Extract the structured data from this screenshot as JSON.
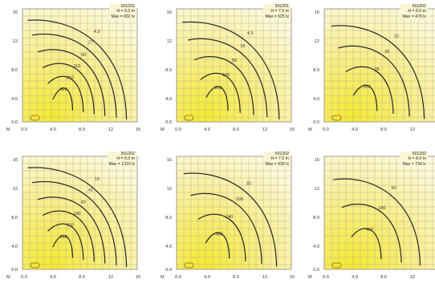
{
  "chart_data": [
    {
      "type": "contour",
      "code": "501201",
      "height": "H = 6.0 m",
      "max": "Max = 832 lx",
      "x_ticks": [
        "M",
        "0.0",
        "4.0",
        "8.0",
        "12",
        "16"
      ],
      "y_ticks": [
        "16",
        "12",
        "8.0",
        "4.0",
        "0.0"
      ],
      "contours": [
        {
          "level": "4.3"
        },
        {
          "level": "27"
        },
        {
          "level": "50"
        },
        {
          "level": "110"
        },
        {
          "level": "210"
        },
        {
          "level": "420"
        }
      ]
    },
    {
      "type": "contour",
      "code": "501201",
      "height": "H = 7.0 m",
      "max": "Max = 625 lx",
      "x_ticks": [
        "M",
        "0.0",
        "4.0",
        "8.0",
        "12",
        "16"
      ],
      "y_ticks": [
        "16",
        "12",
        "8.0",
        "4.0",
        "0.0"
      ],
      "contours": [
        {
          "level": "4.3"
        },
        {
          "level": "15"
        },
        {
          "level": "50"
        },
        {
          "level": "100"
        },
        {
          "level": "210"
        }
      ]
    },
    {
      "type": "contour",
      "code": "501201",
      "height": "H = 8.0 m",
      "max": "Max = 479 lx",
      "x_ticks": [
        "M",
        "0.0",
        "4.0",
        "8.0",
        "12",
        "16"
      ],
      "y_ticks": [
        "16",
        "12",
        "8.0",
        "4.0",
        "0.0"
      ],
      "contours": [
        {
          "level": "13"
        },
        {
          "level": "30"
        },
        {
          "level": "95"
        },
        {
          "level": "390"
        }
      ]
    },
    {
      "type": "contour",
      "code": "501202",
      "height": "H = 6.0 m",
      "max": "Max = 1310 lx",
      "x_ticks": [
        "M",
        "0.0",
        "4.0",
        "8.0",
        "12",
        "16"
      ],
      "y_ticks": [
        "16",
        "12",
        "8.0",
        "4.0",
        "0.0"
      ],
      "contours": [
        {
          "level": "13"
        },
        {
          "level": "41"
        },
        {
          "level": "87"
        },
        {
          "level": "190"
        },
        {
          "level": "370"
        },
        {
          "level": "810"
        }
      ]
    },
    {
      "type": "contour",
      "code": "501202",
      "height": "H = 7.0 m",
      "max": "Max = 939 lx",
      "x_ticks": [
        "M",
        "0.0",
        "4.0",
        "8.0",
        "12",
        "16"
      ],
      "y_ticks": [
        "16",
        "12",
        "8.0",
        "4.0",
        "0.0"
      ],
      "contours": [
        {
          "level": "30"
        },
        {
          "level": "100"
        },
        {
          "level": "240"
        },
        {
          "level": "580"
        }
      ]
    },
    {
      "type": "contour",
      "code": "501202",
      "height": "H = 8.0 m",
      "max": "Max = 734 lx",
      "x_ticks": [
        "M",
        "0.0",
        "4.0",
        "8.0",
        "12",
        "16"
      ],
      "y_ticks": [
        "16",
        "12",
        "8.0",
        "4.0",
        "0.0"
      ],
      "contours": [
        {
          "level": "50"
        },
        {
          "level": "190"
        },
        {
          "level": "410"
        }
      ]
    }
  ]
}
